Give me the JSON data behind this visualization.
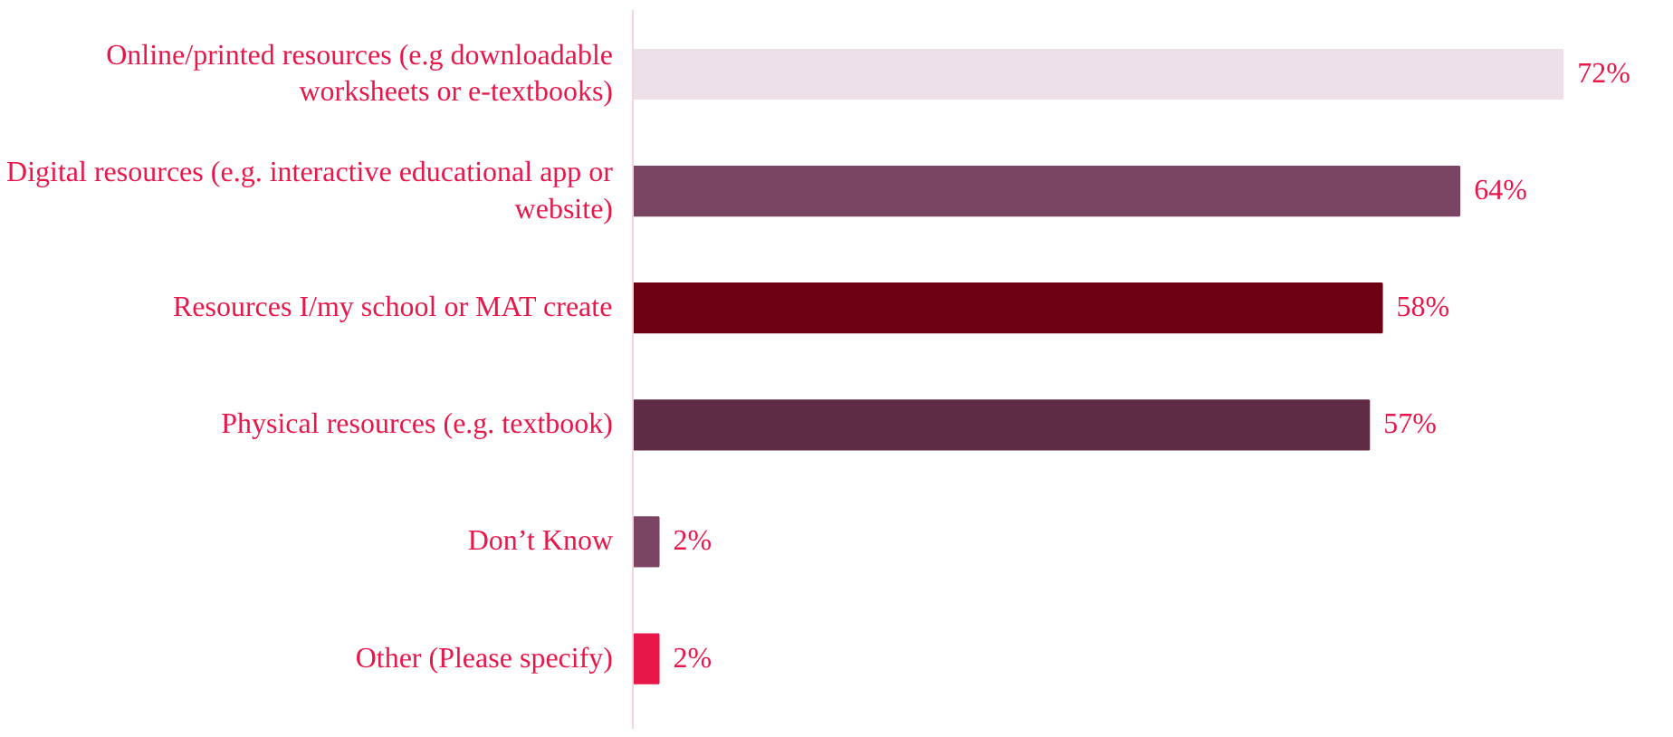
{
  "chart_data": {
    "type": "bar",
    "orientation": "horizontal",
    "categories": [
      "Online/printed resources (e.g downloadable worksheets or e-textbooks)",
      "Digital resources (e.g. interactive educational app or website)",
      "Resources I/my school or MAT create",
      "Physical resources (e.g. textbook)",
      "Don’t Know",
      "Other (Please specify)"
    ],
    "values": [
      72,
      64,
      58,
      57,
      2,
      2
    ],
    "colors": [
      "#ede0e8",
      "#7a4563",
      "#6e0014",
      "#5e2d45",
      "#7a4563",
      "#e8174a"
    ],
    "value_labels": [
      "72%",
      "64%",
      "58%",
      "57%",
      "2%",
      "2%"
    ],
    "grid": false
  }
}
